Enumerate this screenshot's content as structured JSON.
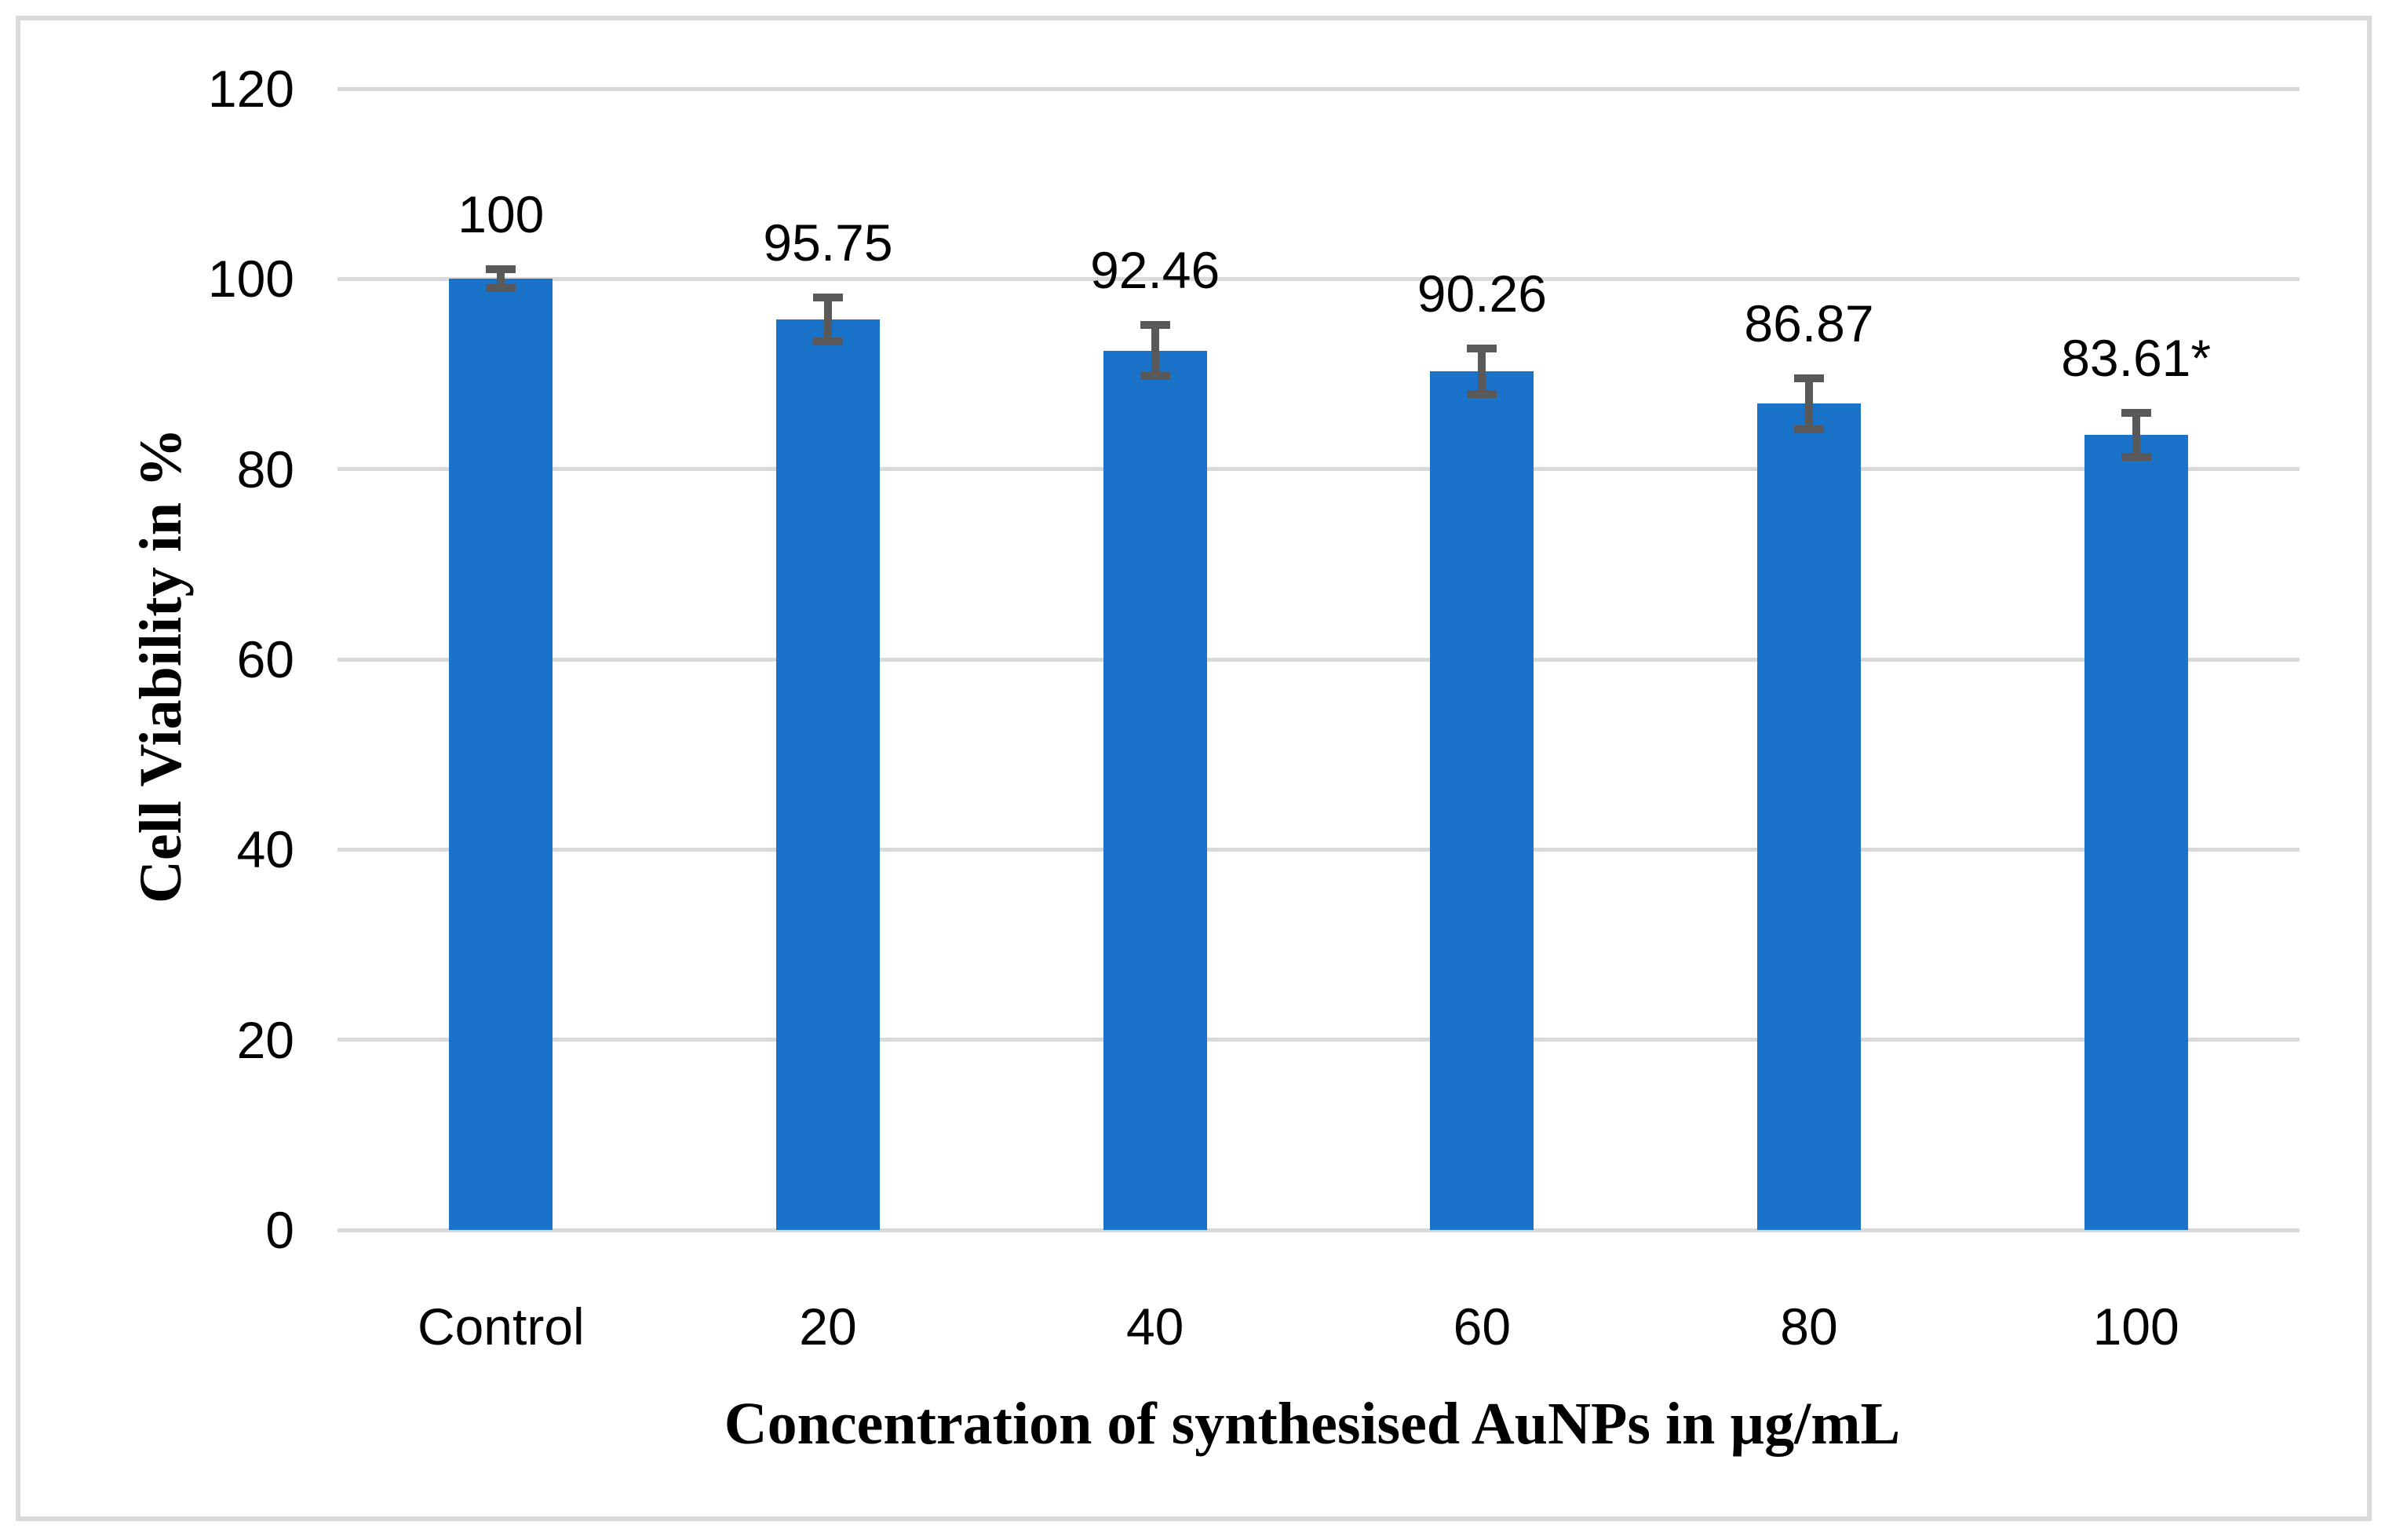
{
  "figure": {
    "background_color": "#ffffff",
    "frame_border_color": "#dadada"
  },
  "chart_data": {
    "type": "bar",
    "title": "",
    "xlabel": "Concentration of synthesised AuNPs in µg/mL",
    "ylabel": "Cell Viability in %",
    "categories": [
      "Control",
      "20",
      "40",
      "60",
      "80",
      "100"
    ],
    "values": [
      100,
      95.75,
      92.46,
      90.26,
      86.87,
      83.61
    ],
    "value_labels": [
      "100",
      "95.75",
      "92.46",
      "90.26",
      "86.87",
      "83.61*"
    ],
    "error_bars_plus_minus": [
      1.0,
      2.3,
      2.7,
      2.4,
      2.7,
      2.3
    ],
    "ylim": [
      0,
      120
    ],
    "yticks": [
      0,
      20,
      40,
      60,
      80,
      100,
      120
    ],
    "grid": "horizontal gridlines on",
    "legend_position": "none",
    "bar_color": "#1a73c8",
    "error_bar_color": "#595959",
    "gridline_color": "#d9d9d9",
    "label_color": "#000000"
  }
}
